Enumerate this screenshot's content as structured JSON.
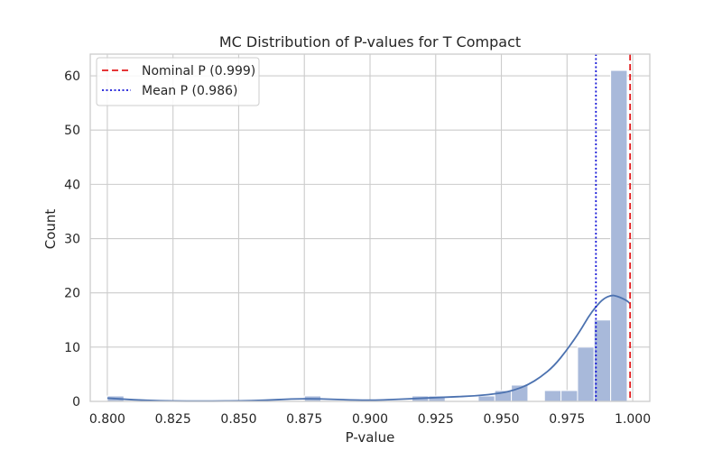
{
  "chart_data": {
    "type": "histogram",
    "title": "MC Distribution of P-values for T Compact",
    "xlabel": "P-value",
    "ylabel": "Count",
    "xlim": [
      0.7935,
      1.0065
    ],
    "ylim": [
      0,
      64
    ],
    "xticks": [
      0.8,
      0.825,
      0.85,
      0.875,
      0.9,
      0.925,
      0.95,
      0.975,
      1.0
    ],
    "xtick_labels": [
      "0.800",
      "0.825",
      "0.850",
      "0.875",
      "0.900",
      "0.925",
      "0.950",
      "0.975",
      "1.000"
    ],
    "yticks": [
      0,
      10,
      20,
      30,
      40,
      50,
      60
    ],
    "ytick_labels": [
      "0",
      "10",
      "20",
      "30",
      "40",
      "50",
      "60"
    ],
    "grid": true,
    "bars": [
      {
        "x0": 0.8,
        "x1": 0.8063,
        "count": 1
      },
      {
        "x0": 0.875,
        "x1": 0.8813,
        "count": 1
      },
      {
        "x0": 0.916,
        "x1": 0.9223,
        "count": 1
      },
      {
        "x0": 0.9223,
        "x1": 0.9286,
        "count": 1
      },
      {
        "x0": 0.9412,
        "x1": 0.9475,
        "count": 1
      },
      {
        "x0": 0.9475,
        "x1": 0.9538,
        "count": 2
      },
      {
        "x0": 0.9538,
        "x1": 0.9601,
        "count": 3
      },
      {
        "x0": 0.9664,
        "x1": 0.9727,
        "count": 2
      },
      {
        "x0": 0.9727,
        "x1": 0.979,
        "count": 2
      },
      {
        "x0": 0.979,
        "x1": 0.9853,
        "count": 10
      },
      {
        "x0": 0.9853,
        "x1": 0.9916,
        "count": 15
      },
      {
        "x0": 0.9916,
        "x1": 0.9979,
        "count": 61
      }
    ],
    "kde_curve": {
      "x": [
        0.8,
        0.81,
        0.82,
        0.83,
        0.84,
        0.85,
        0.86,
        0.87,
        0.88,
        0.89,
        0.9,
        0.91,
        0.92,
        0.93,
        0.94,
        0.95,
        0.955,
        0.96,
        0.965,
        0.97,
        0.975,
        0.98,
        0.983,
        0.986,
        0.989,
        0.992,
        0.994,
        0.996,
        0.998,
        0.999
      ],
      "y": [
        0.6,
        0.3,
        0.1,
        0.05,
        0.05,
        0.1,
        0.2,
        0.45,
        0.5,
        0.3,
        0.2,
        0.35,
        0.6,
        0.8,
        1.0,
        1.5,
        2.1,
        3.0,
        4.5,
        6.5,
        9.5,
        13.0,
        15.5,
        17.5,
        19.0,
        19.6,
        19.4,
        19.0,
        18.5,
        18.0
      ]
    },
    "vlines": [
      {
        "name": "Nominal P (0.999)",
        "x": 0.999,
        "color": "#e31a1c",
        "style": "dashed"
      },
      {
        "name": "Mean P (0.986)",
        "x": 0.986,
        "color": "#1515d6",
        "style": "dotted"
      }
    ],
    "legend_position": "top-left",
    "colors": {
      "bar_fill": "#a8b9da",
      "bar_stroke": "#ffffff",
      "kde": "#4c72b0",
      "grid": "#cccccc",
      "spine": "#cccccc"
    }
  }
}
